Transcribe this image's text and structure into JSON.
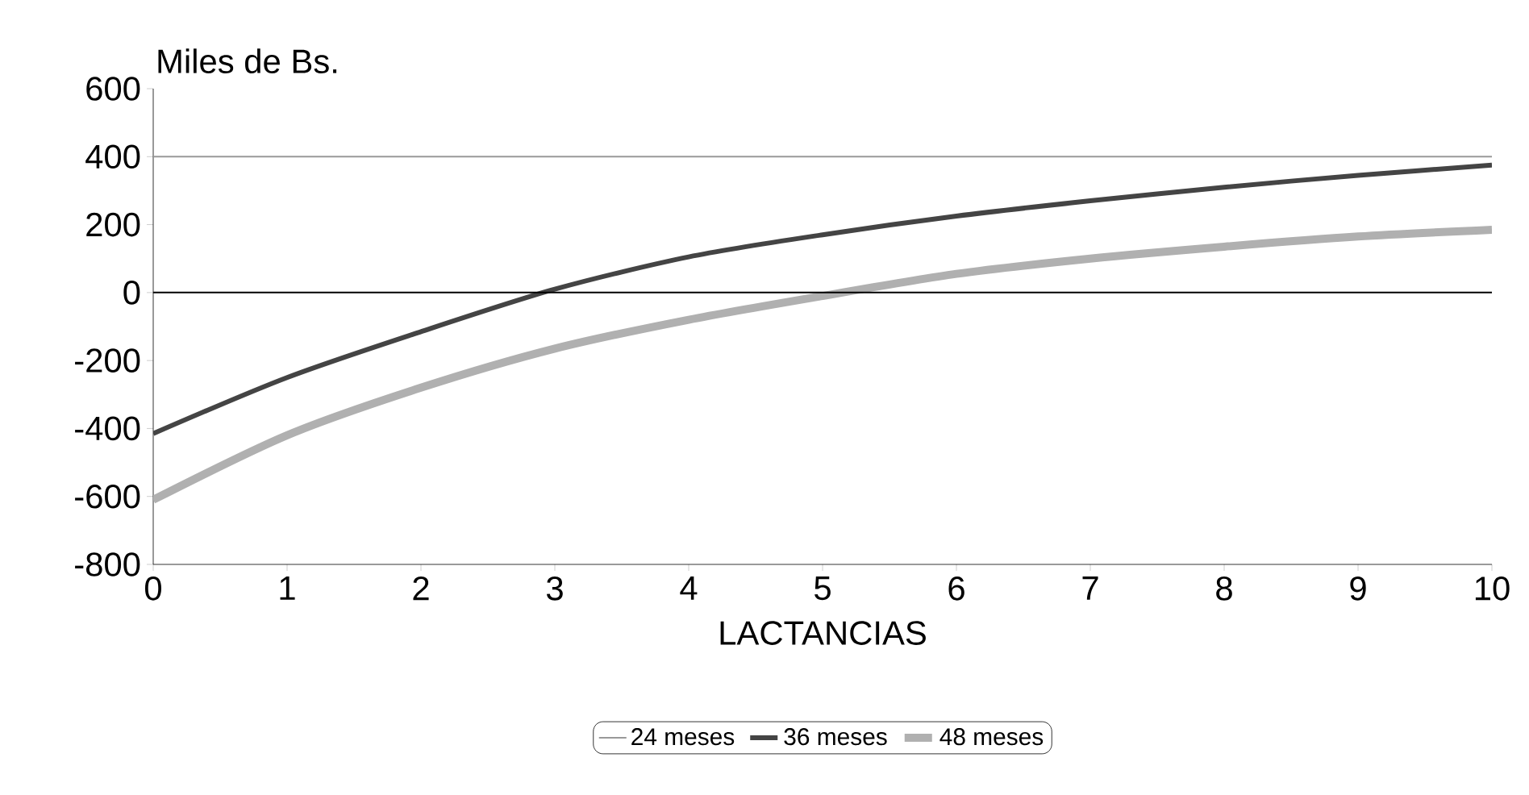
{
  "chart_data": {
    "type": "line",
    "ylabel": "Miles de Bs.",
    "xlabel": "LACTANCIAS",
    "x": [
      0,
      1,
      2,
      3,
      4,
      5,
      6,
      7,
      8,
      9,
      10
    ],
    "series": [
      {
        "name": "24 meses",
        "color": "#999999",
        "values": [
          400,
          400,
          400,
          400,
          400,
          400,
          400,
          400,
          400,
          400,
          400
        ]
      },
      {
        "name": "36 meses",
        "color": "#444444",
        "values": [
          -415,
          -250,
          -115,
          10,
          105,
          170,
          225,
          270,
          310,
          345,
          375
        ]
      },
      {
        "name": "48 meses",
        "color": "#b0b0b0",
        "values": [
          -610,
          -420,
          -280,
          -165,
          -80,
          -10,
          55,
          100,
          135,
          165,
          185
        ]
      }
    ],
    "xlim": [
      0,
      10
    ],
    "xticks": [
      0,
      1,
      2,
      3,
      4,
      5,
      6,
      7,
      8,
      9,
      10
    ],
    "ylim": [
      -800,
      600
    ],
    "yticks": [
      -800,
      -600,
      -400,
      -200,
      0,
      200,
      400,
      600
    ],
    "ref_lines": [
      {
        "axis": "y",
        "value": 0,
        "color": "#000000"
      }
    ],
    "legend": "bottom",
    "marker": "none",
    "line_style": "solid",
    "grid": false
  }
}
